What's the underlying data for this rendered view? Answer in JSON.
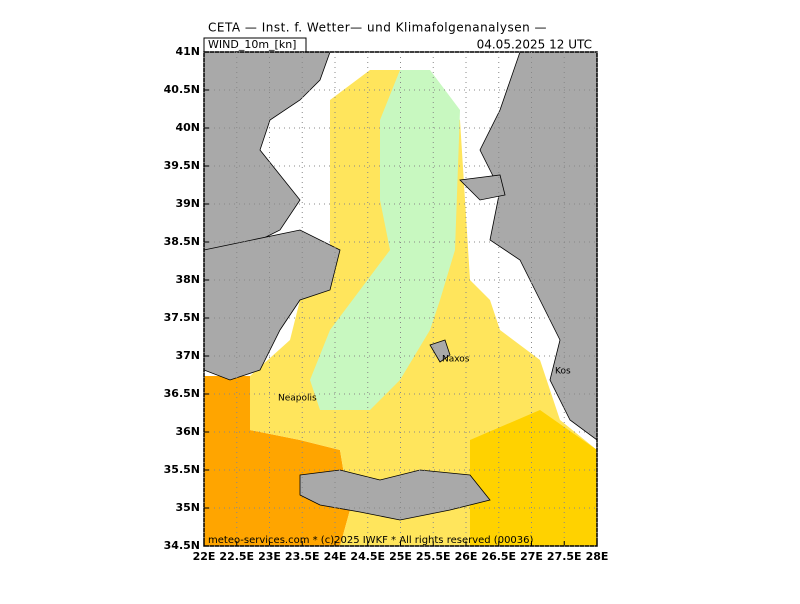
{
  "header": {
    "title": "CETA — Inst. f. Wetter— und Klimafolgenanalysen —",
    "field": "WIND_10m_[kn]",
    "date": "04.05.2025 12 UTC"
  },
  "map": {
    "xlim": [
      22,
      28
    ],
    "ylim": [
      34.5,
      41
    ],
    "xticks": [
      {
        "value": 22,
        "label": "22E"
      },
      {
        "value": 22.5,
        "label": "22.5E"
      },
      {
        "value": 23,
        "label": "23E"
      },
      {
        "value": 23.5,
        "label": "23.5E"
      },
      {
        "value": 24,
        "label": "24E"
      },
      {
        "value": 24.5,
        "label": "24.5E"
      },
      {
        "value": 25,
        "label": "25E"
      },
      {
        "value": 25.5,
        "label": "25.5E"
      },
      {
        "value": 26,
        "label": "26E"
      },
      {
        "value": 26.5,
        "label": "26.5E"
      },
      {
        "value": 27,
        "label": "27E"
      },
      {
        "value": 27.5,
        "label": "27.5E"
      },
      {
        "value": 28,
        "label": "28E"
      }
    ],
    "yticks": [
      {
        "value": 41,
        "label": "41N"
      },
      {
        "value": 40.5,
        "label": "40.5N"
      },
      {
        "value": 40,
        "label": "40N"
      },
      {
        "value": 39.5,
        "label": "39.5N"
      },
      {
        "value": 39,
        "label": "39N"
      },
      {
        "value": 38.5,
        "label": "38.5N"
      },
      {
        "value": 38,
        "label": "38N"
      },
      {
        "value": 37.5,
        "label": "37.5N"
      },
      {
        "value": 37,
        "label": "37N"
      },
      {
        "value": 36.5,
        "label": "36.5N"
      },
      {
        "value": 36,
        "label": "36N"
      },
      {
        "value": 35.5,
        "label": "35.5N"
      },
      {
        "value": 35,
        "label": "35N"
      },
      {
        "value": 34.5,
        "label": "34.5N"
      }
    ],
    "places": [
      "Naxos",
      "Kos",
      "Neapolis"
    ]
  },
  "footer": "meteo-services.com * (c)2025 IWKF * All rights reserved (00036)"
}
